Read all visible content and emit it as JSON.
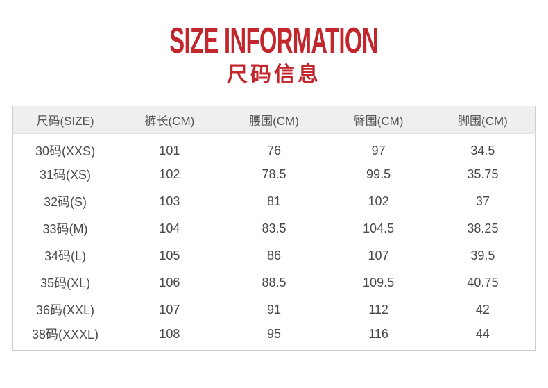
{
  "title": "SIZE INFORMATION",
  "subtitle": "尺码信息",
  "colors": {
    "accent": "#c1272d",
    "header_bg": "#efefef",
    "border": "#cccccc",
    "header_text": "#555555",
    "cell_text": "#4a4a4a"
  },
  "table": {
    "headers": [
      "尺码(SIZE)",
      "裤长(CM)",
      "腰围(CM)",
      "臀围(CM)",
      "脚围(CM)"
    ],
    "rows": [
      [
        "30码(XXS)",
        "101",
        "76",
        "97",
        "34.5"
      ],
      [
        "31码(XS)",
        "102",
        "78.5",
        "99.5",
        "35.75"
      ],
      [
        "32码(S)",
        "103",
        "81",
        "102",
        "37"
      ],
      [
        "33码(M)",
        "104",
        "83.5",
        "104.5",
        "38.25"
      ],
      [
        "34码(L)",
        "105",
        "86",
        "107",
        "39.5"
      ],
      [
        "35码(XL)",
        "106",
        "88.5",
        "109.5",
        "40.75"
      ],
      [
        "36码(XXL)",
        "107",
        "91",
        "112",
        "42"
      ],
      [
        "38码(XXXL)",
        "108",
        "95",
        "116",
        "44"
      ]
    ]
  }
}
